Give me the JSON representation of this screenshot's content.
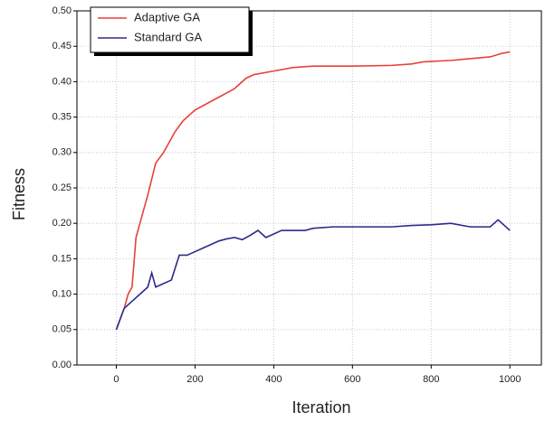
{
  "chart_data": {
    "type": "line",
    "x_label": "Iteration",
    "y_label": "Fitness",
    "xlim": [
      -100,
      1080
    ],
    "xticks": [
      0,
      200,
      400,
      600,
      800,
      1000
    ],
    "ylim": [
      0,
      0.5
    ],
    "yticks": [
      {
        "value": 0,
        "label": "0.00"
      },
      0.05,
      {
        "value": 0.1,
        "label": "0.10"
      },
      0.15,
      {
        "value": 0.2,
        "label": "0.20"
      },
      0.25,
      {
        "value": 0.3,
        "label": "0.30"
      },
      0.35,
      {
        "value": 0.4,
        "label": "0.40"
      },
      0.45,
      {
        "value": 0.5,
        "label": "0.50"
      }
    ],
    "grid": true,
    "legend": "upper left",
    "series": [
      {
        "name": "Adaptive GA",
        "color": "#e8403a",
        "x": [
          0,
          20,
          30,
          40,
          50,
          60,
          80,
          100,
          120,
          150,
          170,
          200,
          250,
          300,
          330,
          350,
          400,
          450,
          500,
          600,
          700,
          750,
          780,
          850,
          950,
          980,
          1000
        ],
        "values": [
          0.05,
          0.08,
          0.1,
          0.11,
          0.18,
          0.2,
          0.24,
          0.285,
          0.3,
          0.33,
          0.345,
          0.36,
          0.375,
          0.39,
          0.405,
          0.41,
          0.415,
          0.42,
          0.422,
          0.422,
          0.423,
          0.425,
          0.428,
          0.43,
          0.435,
          0.44,
          0.442
        ]
      },
      {
        "name": "Standard GA",
        "color": "#2b2b8a",
        "x": [
          0,
          20,
          40,
          60,
          80,
          90,
          100,
          120,
          140,
          160,
          180,
          200,
          220,
          240,
          260,
          280,
          300,
          320,
          340,
          360,
          380,
          400,
          420,
          450,
          480,
          500,
          550,
          600,
          650,
          700,
          750,
          800,
          850,
          900,
          950,
          970,
          1000
        ],
        "values": [
          0.05,
          0.08,
          0.09,
          0.1,
          0.11,
          0.13,
          0.11,
          0.115,
          0.12,
          0.155,
          0.155,
          0.16,
          0.165,
          0.17,
          0.175,
          0.178,
          0.18,
          0.177,
          0.183,
          0.19,
          0.18,
          0.185,
          0.19,
          0.19,
          0.19,
          0.193,
          0.195,
          0.195,
          0.195,
          0.195,
          0.197,
          0.198,
          0.2,
          0.195,
          0.195,
          0.205,
          0.19
        ]
      }
    ]
  }
}
